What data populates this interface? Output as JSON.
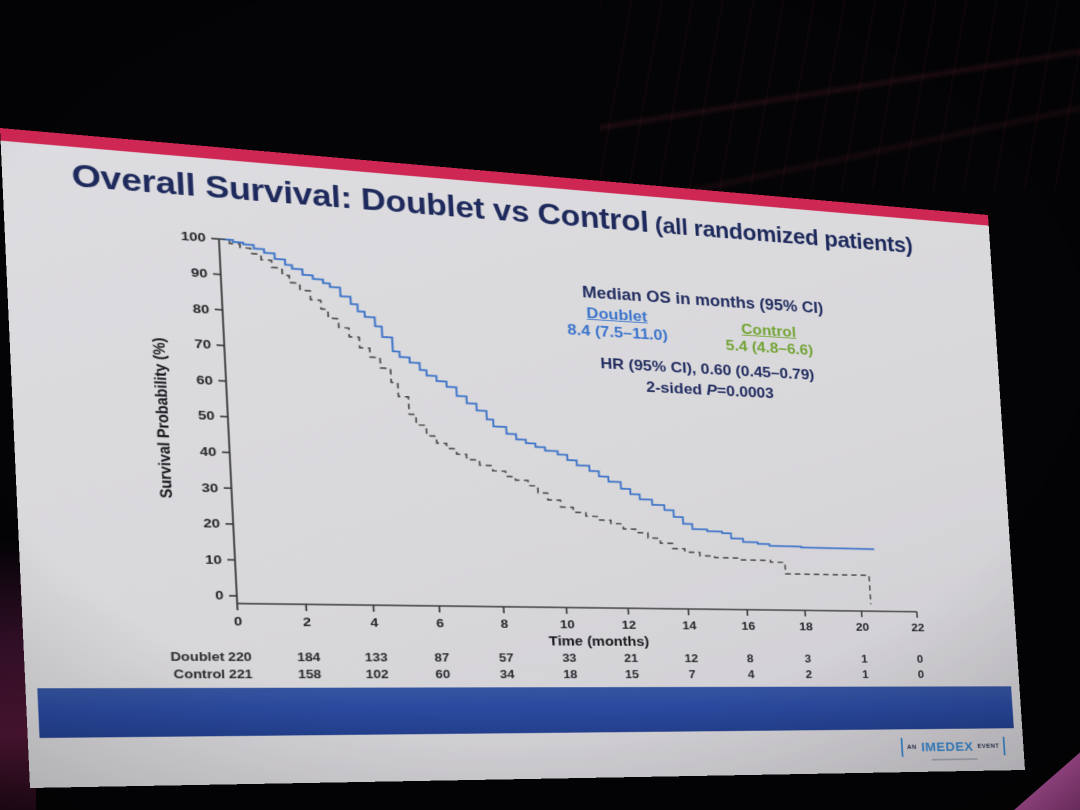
{
  "slide": {
    "title": "Overall Survival: Doublet vs Control",
    "title_suffix": " (all randomized patients)",
    "title_color": "#1e2a5c",
    "stripe_color": "#cf2753",
    "background": "#d8d7da"
  },
  "annotation": {
    "heading": "Median OS in months (95% CI)",
    "doublet_label": "Doublet",
    "doublet_value": "8.4 (7.5–11.0)",
    "control_label": "Control",
    "control_value": "5.4 (4.8–6.6)",
    "hr_line": "HR (95% CI), 0.60 (0.45–0.79)",
    "p_prefix": "2-sided ",
    "p_symbol": "P",
    "p_suffix": "=0.0003",
    "text_color": "#222d60",
    "doublet_color": "#3b74cc",
    "control_color": "#74a437"
  },
  "footer": {
    "bar_color": "#2b4a9f",
    "logo": {
      "an": "AN",
      "brand": "IMEDEX",
      "event": "EVENT",
      "accent_color": "#3a85c8"
    }
  },
  "chart_data": {
    "type": "line",
    "subtype": "kaplan-meier-step",
    "xlabel": "Time (months)",
    "ylabel": "Survival Probability (%)",
    "xlim": [
      0,
      22
    ],
    "ylim": [
      0,
      100
    ],
    "xticks": [
      0,
      2,
      4,
      6,
      8,
      10,
      12,
      14,
      16,
      18,
      20,
      22
    ],
    "yticks": [
      0,
      10,
      20,
      30,
      40,
      50,
      60,
      70,
      80,
      90,
      100
    ],
    "grid": false,
    "series": [
      {
        "name": "Doublet",
        "style": "solid",
        "color": "#4377c9",
        "censor_color": "#4377c9",
        "median_months": 8.4,
        "steps": [
          [
            0,
            100
          ],
          [
            0.4,
            99.5
          ],
          [
            0.7,
            99
          ],
          [
            1.0,
            98
          ],
          [
            1.3,
            97
          ],
          [
            1.6,
            95.5
          ],
          [
            1.9,
            94
          ],
          [
            2.1,
            93
          ],
          [
            2.4,
            91.5
          ],
          [
            2.7,
            90.5
          ],
          [
            3.0,
            89.5
          ],
          [
            3.2,
            88.5
          ],
          [
            3.5,
            86
          ],
          [
            3.8,
            84
          ],
          [
            4.0,
            82
          ],
          [
            4.2,
            80.5
          ],
          [
            4.5,
            78
          ],
          [
            4.7,
            75
          ],
          [
            5.0,
            71
          ],
          [
            5.2,
            69.5
          ],
          [
            5.5,
            68
          ],
          [
            5.8,
            66
          ],
          [
            6.0,
            64.5
          ],
          [
            6.3,
            63
          ],
          [
            6.6,
            61.5
          ],
          [
            6.9,
            59
          ],
          [
            7.2,
            57
          ],
          [
            7.5,
            55
          ],
          [
            7.8,
            52.5
          ],
          [
            8.0,
            50.5
          ],
          [
            8.4,
            48.5
          ],
          [
            8.7,
            47
          ],
          [
            9.0,
            46
          ],
          [
            9.3,
            45
          ],
          [
            9.6,
            44
          ],
          [
            10.0,
            43
          ],
          [
            10.3,
            41.5
          ],
          [
            10.6,
            40
          ],
          [
            11.0,
            38.5
          ],
          [
            11.3,
            37
          ],
          [
            11.6,
            35.5
          ],
          [
            12.0,
            33.5
          ],
          [
            12.3,
            32
          ],
          [
            12.6,
            30.5
          ],
          [
            13.0,
            29
          ],
          [
            13.4,
            27.5
          ],
          [
            13.7,
            25.5
          ],
          [
            14.0,
            23.5
          ],
          [
            14.3,
            22
          ],
          [
            14.8,
            21.5
          ],
          [
            15.3,
            21
          ],
          [
            15.6,
            19.5
          ],
          [
            16.0,
            18.5
          ],
          [
            16.5,
            18
          ],
          [
            16.9,
            17.5
          ],
          [
            18.0,
            17.2
          ],
          [
            20.6,
            17.2
          ]
        ],
        "censors": [
          [
            0.3,
            99.7
          ],
          [
            0.5,
            99.5
          ],
          [
            0.7,
            99
          ],
          [
            0.9,
            98.5
          ],
          [
            1.1,
            97.7
          ],
          [
            1.3,
            97
          ],
          [
            1.5,
            96
          ],
          [
            1.7,
            95
          ],
          [
            2.4,
            91.5
          ],
          [
            3.1,
            89
          ],
          [
            3.9,
            83
          ],
          [
            4.4,
            79
          ],
          [
            5.1,
            70.5
          ],
          [
            5.7,
            66.5
          ],
          [
            6.2,
            63.5
          ],
          [
            6.6,
            61.5
          ],
          [
            7.0,
            58
          ],
          [
            8.0,
            50.5
          ],
          [
            8.8,
            46.5
          ],
          [
            9.6,
            44
          ],
          [
            10.4,
            41
          ],
          [
            11.2,
            37.5
          ],
          [
            12.0,
            33.5
          ],
          [
            12.8,
            30
          ],
          [
            13.3,
            28
          ],
          [
            14.2,
            22
          ],
          [
            15.2,
            21
          ],
          [
            16.2,
            18.5
          ],
          [
            17.0,
            17.4
          ],
          [
            17.8,
            17.2
          ],
          [
            19.5,
            17.2
          ],
          [
            20.6,
            17.2
          ]
        ]
      },
      {
        "name": "Control",
        "style": "dashed",
        "color": "#4d4d4b",
        "censor_color": "#3c8c4c",
        "median_months": 5.4,
        "steps": [
          [
            0,
            100
          ],
          [
            0.3,
            99
          ],
          [
            0.6,
            98
          ],
          [
            0.9,
            96.5
          ],
          [
            1.2,
            95
          ],
          [
            1.5,
            93
          ],
          [
            1.8,
            91
          ],
          [
            2.0,
            89
          ],
          [
            2.3,
            87
          ],
          [
            2.6,
            84.5
          ],
          [
            2.9,
            82
          ],
          [
            3.1,
            79.5
          ],
          [
            3.4,
            77
          ],
          [
            3.7,
            74.5
          ],
          [
            4.0,
            71.5
          ],
          [
            4.3,
            69
          ],
          [
            4.6,
            66
          ],
          [
            4.9,
            62
          ],
          [
            5.1,
            58
          ],
          [
            5.4,
            53
          ],
          [
            5.6,
            50
          ],
          [
            5.9,
            47
          ],
          [
            6.2,
            45
          ],
          [
            6.5,
            43.5
          ],
          [
            6.8,
            42
          ],
          [
            7.1,
            40.5
          ],
          [
            7.5,
            39
          ],
          [
            7.9,
            37.5
          ],
          [
            8.3,
            36
          ],
          [
            8.6,
            35
          ],
          [
            9.0,
            33.5
          ],
          [
            9.3,
            31.5
          ],
          [
            9.6,
            29.5
          ],
          [
            10.0,
            27.5
          ],
          [
            10.4,
            26
          ],
          [
            10.8,
            25
          ],
          [
            11.2,
            24
          ],
          [
            11.6,
            23
          ],
          [
            12.0,
            21.5
          ],
          [
            12.4,
            20.5
          ],
          [
            12.8,
            19
          ],
          [
            13.2,
            17.5
          ],
          [
            13.6,
            16
          ],
          [
            14.0,
            15
          ],
          [
            14.5,
            14
          ],
          [
            15.0,
            13.5
          ],
          [
            15.8,
            13
          ],
          [
            16.9,
            12.5
          ],
          [
            17.4,
            9
          ],
          [
            20.3,
            9
          ],
          [
            20.35,
            0
          ]
        ],
        "censors": [
          [
            0.4,
            98.5
          ],
          [
            0.8,
            97
          ],
          [
            1.2,
            95
          ],
          [
            1.6,
            92.5
          ],
          [
            2.0,
            89
          ],
          [
            2.5,
            85.5
          ],
          [
            2.9,
            82
          ],
          [
            3.4,
            77
          ],
          [
            3.8,
            73
          ],
          [
            4.4,
            68
          ],
          [
            4.8,
            63
          ],
          [
            5.5,
            50
          ],
          [
            6.1,
            45.5
          ],
          [
            6.9,
            41.8
          ],
          [
            7.6,
            38.5
          ],
          [
            8.4,
            35.5
          ],
          [
            9.2,
            32.5
          ],
          [
            10.0,
            27.5
          ],
          [
            10.9,
            24.8
          ],
          [
            11.7,
            22.8
          ],
          [
            12.6,
            19.8
          ],
          [
            13.4,
            16.8
          ],
          [
            14.3,
            14.2
          ],
          [
            15.4,
            13.2
          ],
          [
            16.4,
            12.7
          ],
          [
            19.2,
            9
          ]
        ]
      }
    ],
    "risk_table": {
      "time_points": [
        0,
        2,
        4,
        6,
        8,
        10,
        12,
        14,
        16,
        18,
        20,
        22
      ],
      "rows": [
        {
          "label": "Doublet",
          "values": [
            220,
            184,
            133,
            87,
            57,
            33,
            21,
            12,
            8,
            3,
            1,
            0
          ]
        },
        {
          "label": "Control",
          "values": [
            221,
            158,
            102,
            60,
            34,
            18,
            15,
            7,
            4,
            2,
            1,
            0
          ]
        }
      ]
    }
  }
}
